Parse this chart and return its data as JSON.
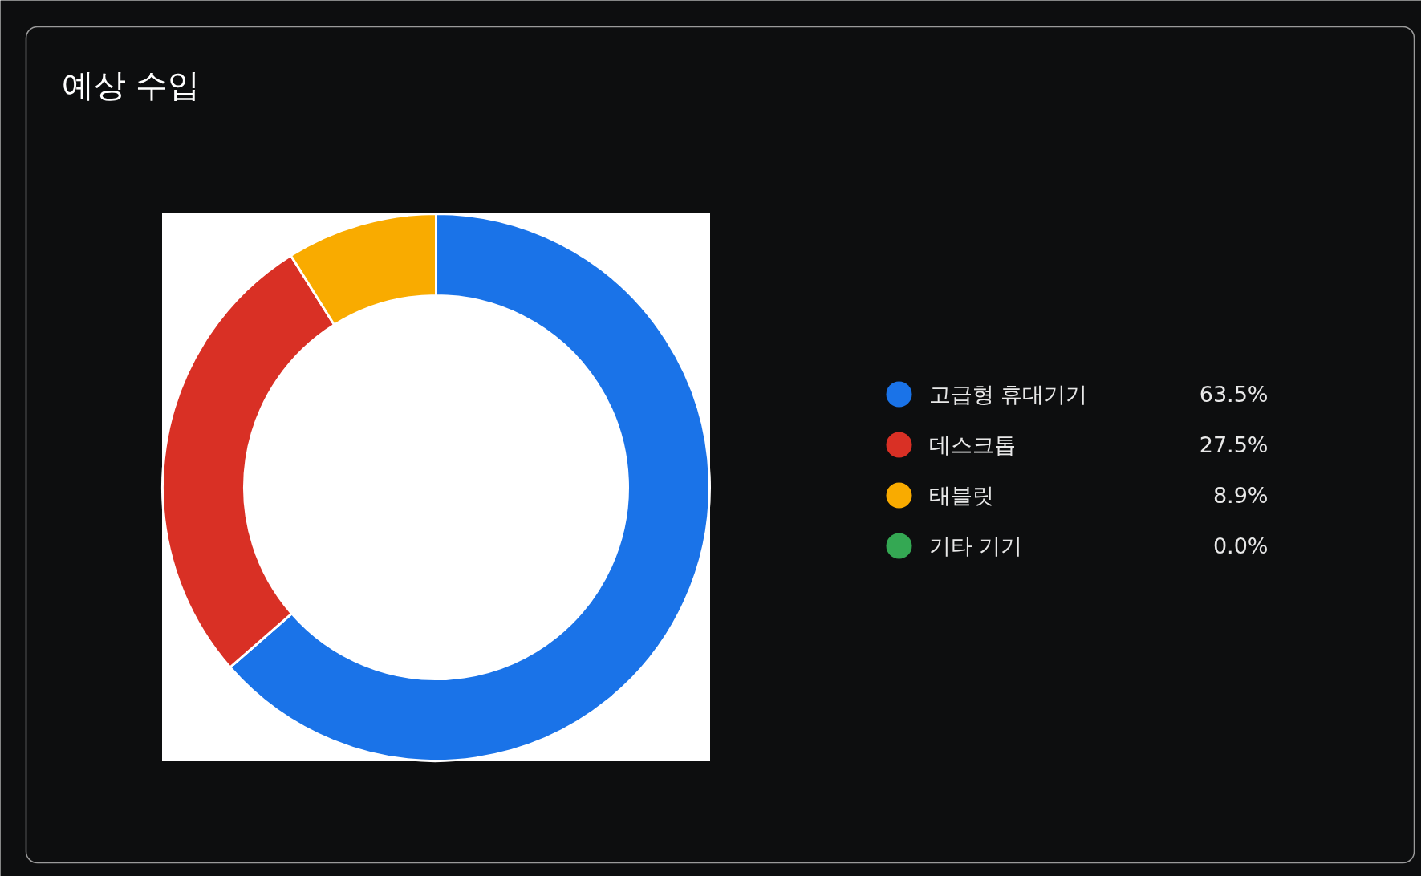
{
  "chart_data": {
    "type": "donut",
    "title": "예상 수입",
    "categories": [
      "고급형 휴대기기",
      "데스크톱",
      "태블릿",
      "기타 기기"
    ],
    "values": [
      63.5,
      27.5,
      8.9,
      0.0
    ],
    "value_labels": [
      "63.5%",
      "27.5%",
      "8.9%",
      "0.0%"
    ],
    "colors": [
      "#1a73e8",
      "#d93025",
      "#f9ab00",
      "#34a853"
    ],
    "legend": "right"
  }
}
